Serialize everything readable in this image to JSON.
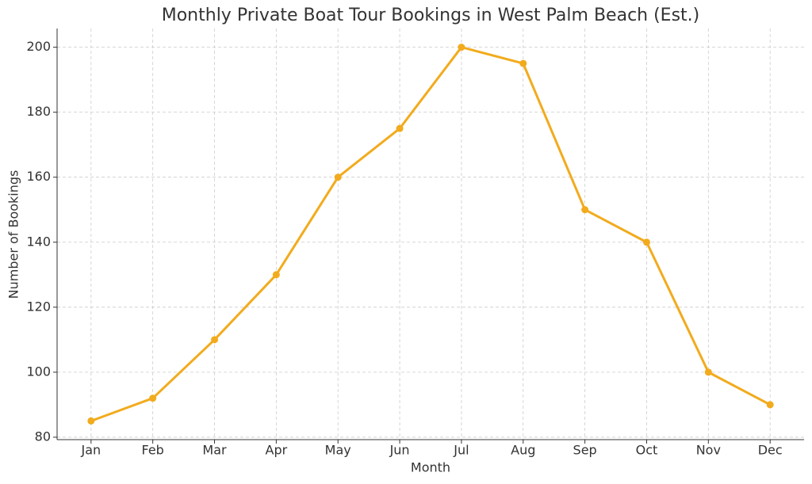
{
  "chart_data": {
    "type": "line",
    "title": "Monthly Private Boat Tour Bookings in West Palm Beach (Est.)",
    "x_label": "Month",
    "y_label": "Number of Bookings",
    "categories": [
      "Jan",
      "Feb",
      "Mar",
      "Apr",
      "May",
      "Jun",
      "Jul",
      "Aug",
      "Sep",
      "Oct",
      "Nov",
      "Dec"
    ],
    "values": [
      85,
      92,
      110,
      130,
      160,
      175,
      200,
      195,
      150,
      140,
      100,
      90
    ],
    "color": "#f2ab1d",
    "ylim": [
      79.25,
      205.75
    ],
    "yticks": [
      80,
      100,
      120,
      140,
      160,
      180,
      200
    ],
    "grid": true
  }
}
